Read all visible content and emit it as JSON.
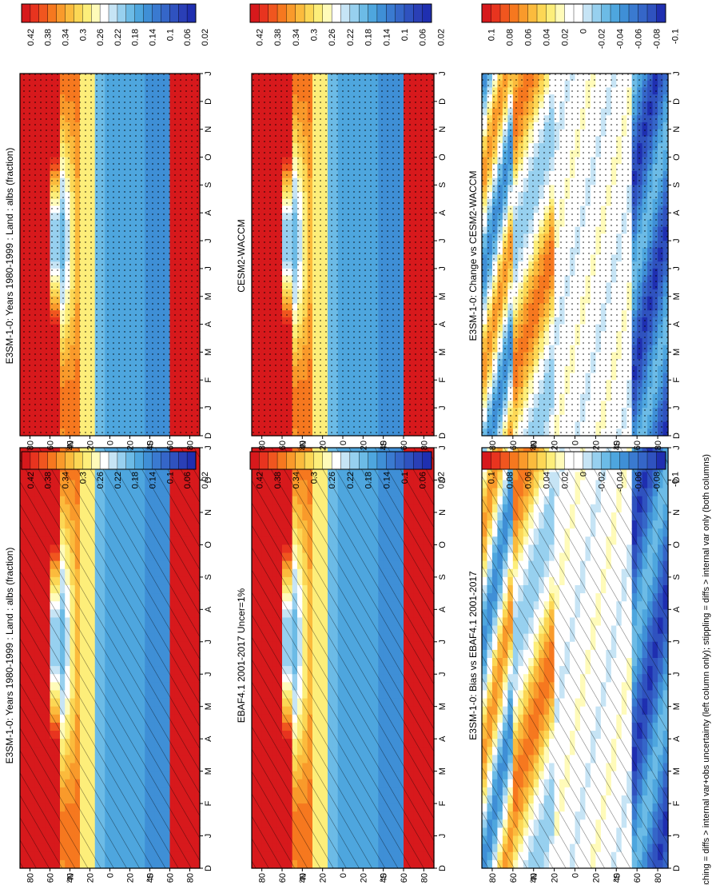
{
  "figure": {
    "caption": "hatching = diffs > internal var+obs uncertainty (left column only); stippling = diffs > internal var only (both columns)"
  },
  "chart_data": [
    {
      "id": "p1",
      "type": "heatmap",
      "title": "E3SM-1-0: Years 1980-1999 : Land : albs (fraction)",
      "x_categories": [
        "D",
        "J",
        "F",
        "M",
        "A",
        "M",
        "J",
        "J",
        "A",
        "S",
        "O",
        "N",
        "D",
        "J"
      ],
      "y_ticks": [
        "80",
        "60",
        "40",
        "20",
        "0",
        "20",
        "40",
        "60",
        "80"
      ],
      "y_hemi": [
        "N",
        "S"
      ],
      "colorbar": {
        "labels": [
          "0.42",
          "0.38",
          "0.34",
          "0.3",
          "0.26",
          "0.22",
          "0.18",
          "0.14",
          "0.1",
          "0.06",
          "0.02"
        ],
        "range": [
          0.0,
          0.44
        ]
      },
      "overlay": "hatch"
    },
    {
      "id": "p2",
      "type": "heatmap",
      "title": "E3SM-1-0: Years 1980-1999 : Land : albs (fraction)",
      "x_categories": [
        "D",
        "J",
        "F",
        "M",
        "A",
        "M",
        "J",
        "J",
        "A",
        "S",
        "O",
        "N",
        "D",
        "J"
      ],
      "y_ticks": [
        "80",
        "60",
        "40",
        "20",
        "0",
        "20",
        "40",
        "60",
        "80"
      ],
      "y_hemi": [
        "N",
        "S"
      ],
      "colorbar": {
        "labels": [
          "0.42",
          "0.38",
          "0.34",
          "0.3",
          "0.26",
          "0.22",
          "0.18",
          "0.14",
          "0.1",
          "0.06",
          "0.02"
        ],
        "range": [
          0.0,
          0.44
        ]
      },
      "overlay": "stipple"
    },
    {
      "id": "p3",
      "type": "heatmap",
      "title": "EBAF4.1 2001-2017 Uncer=1%",
      "x_categories": [
        "D",
        "J",
        "F",
        "M",
        "A",
        "M",
        "J",
        "J",
        "A",
        "S",
        "O",
        "N",
        "D",
        "J"
      ],
      "y_ticks": [
        "80",
        "60",
        "40",
        "20",
        "0",
        "20",
        "40",
        "60",
        "80"
      ],
      "y_hemi": [
        "N",
        "S"
      ],
      "colorbar": {
        "labels": [
          "0.42",
          "0.38",
          "0.34",
          "0.3",
          "0.26",
          "0.22",
          "0.18",
          "0.14",
          "0.1",
          "0.06",
          "0.02"
        ],
        "range": [
          0.0,
          0.44
        ]
      },
      "overlay": "hatch"
    },
    {
      "id": "p4",
      "type": "heatmap",
      "title": "CESM2-WACCM",
      "x_categories": [
        "D",
        "J",
        "F",
        "M",
        "A",
        "M",
        "J",
        "J",
        "A",
        "S",
        "O",
        "N",
        "D",
        "J"
      ],
      "y_ticks": [
        "80",
        "60",
        "40",
        "20",
        "0",
        "20",
        "40",
        "60",
        "80"
      ],
      "y_hemi": [
        "N",
        "S"
      ],
      "colorbar": {
        "labels": [
          "0.42",
          "0.38",
          "0.34",
          "0.3",
          "0.26",
          "0.22",
          "0.18",
          "0.14",
          "0.1",
          "0.06",
          "0.02"
        ],
        "range": [
          0.0,
          0.44
        ]
      },
      "overlay": "stipple"
    },
    {
      "id": "p5",
      "type": "heatmap",
      "title": "E3SM-1-0: Bias vs EBAF4.1 2001-2017",
      "x_categories": [
        "D",
        "J",
        "F",
        "M",
        "A",
        "M",
        "J",
        "J",
        "A",
        "S",
        "O",
        "N",
        "D",
        "J"
      ],
      "y_ticks": [
        "80",
        "60",
        "40",
        "20",
        "0",
        "20",
        "40",
        "60",
        "80"
      ],
      "y_hemi": [
        "N",
        "S"
      ],
      "colorbar": {
        "labels": [
          "0.1",
          "0.08",
          "0.06",
          "0.04",
          "0.02",
          "0",
          "-0.02",
          "-0.04",
          "-0.06",
          "-0.08",
          "-0.1"
        ],
        "range": [
          -0.11,
          0.11
        ]
      },
      "overlay": "hatch"
    },
    {
      "id": "p6",
      "type": "heatmap",
      "title": "E3SM-1-0: Change vs CESM2-WACCM",
      "x_categories": [
        "D",
        "J",
        "F",
        "M",
        "A",
        "M",
        "J",
        "J",
        "A",
        "S",
        "O",
        "N",
        "D",
        "J"
      ],
      "y_ticks": [
        "80",
        "60",
        "40",
        "20",
        "0",
        "20",
        "40",
        "60",
        "80"
      ],
      "y_hemi": [
        "N",
        "S"
      ],
      "colorbar": {
        "labels": [
          "0.1",
          "0.08",
          "0.06",
          "0.04",
          "0.02",
          "0",
          "-0.02",
          "-0.04",
          "-0.06",
          "-0.08",
          "-0.1"
        ],
        "range": [
          -0.11,
          0.11
        ]
      },
      "overlay": "stipple"
    }
  ]
}
